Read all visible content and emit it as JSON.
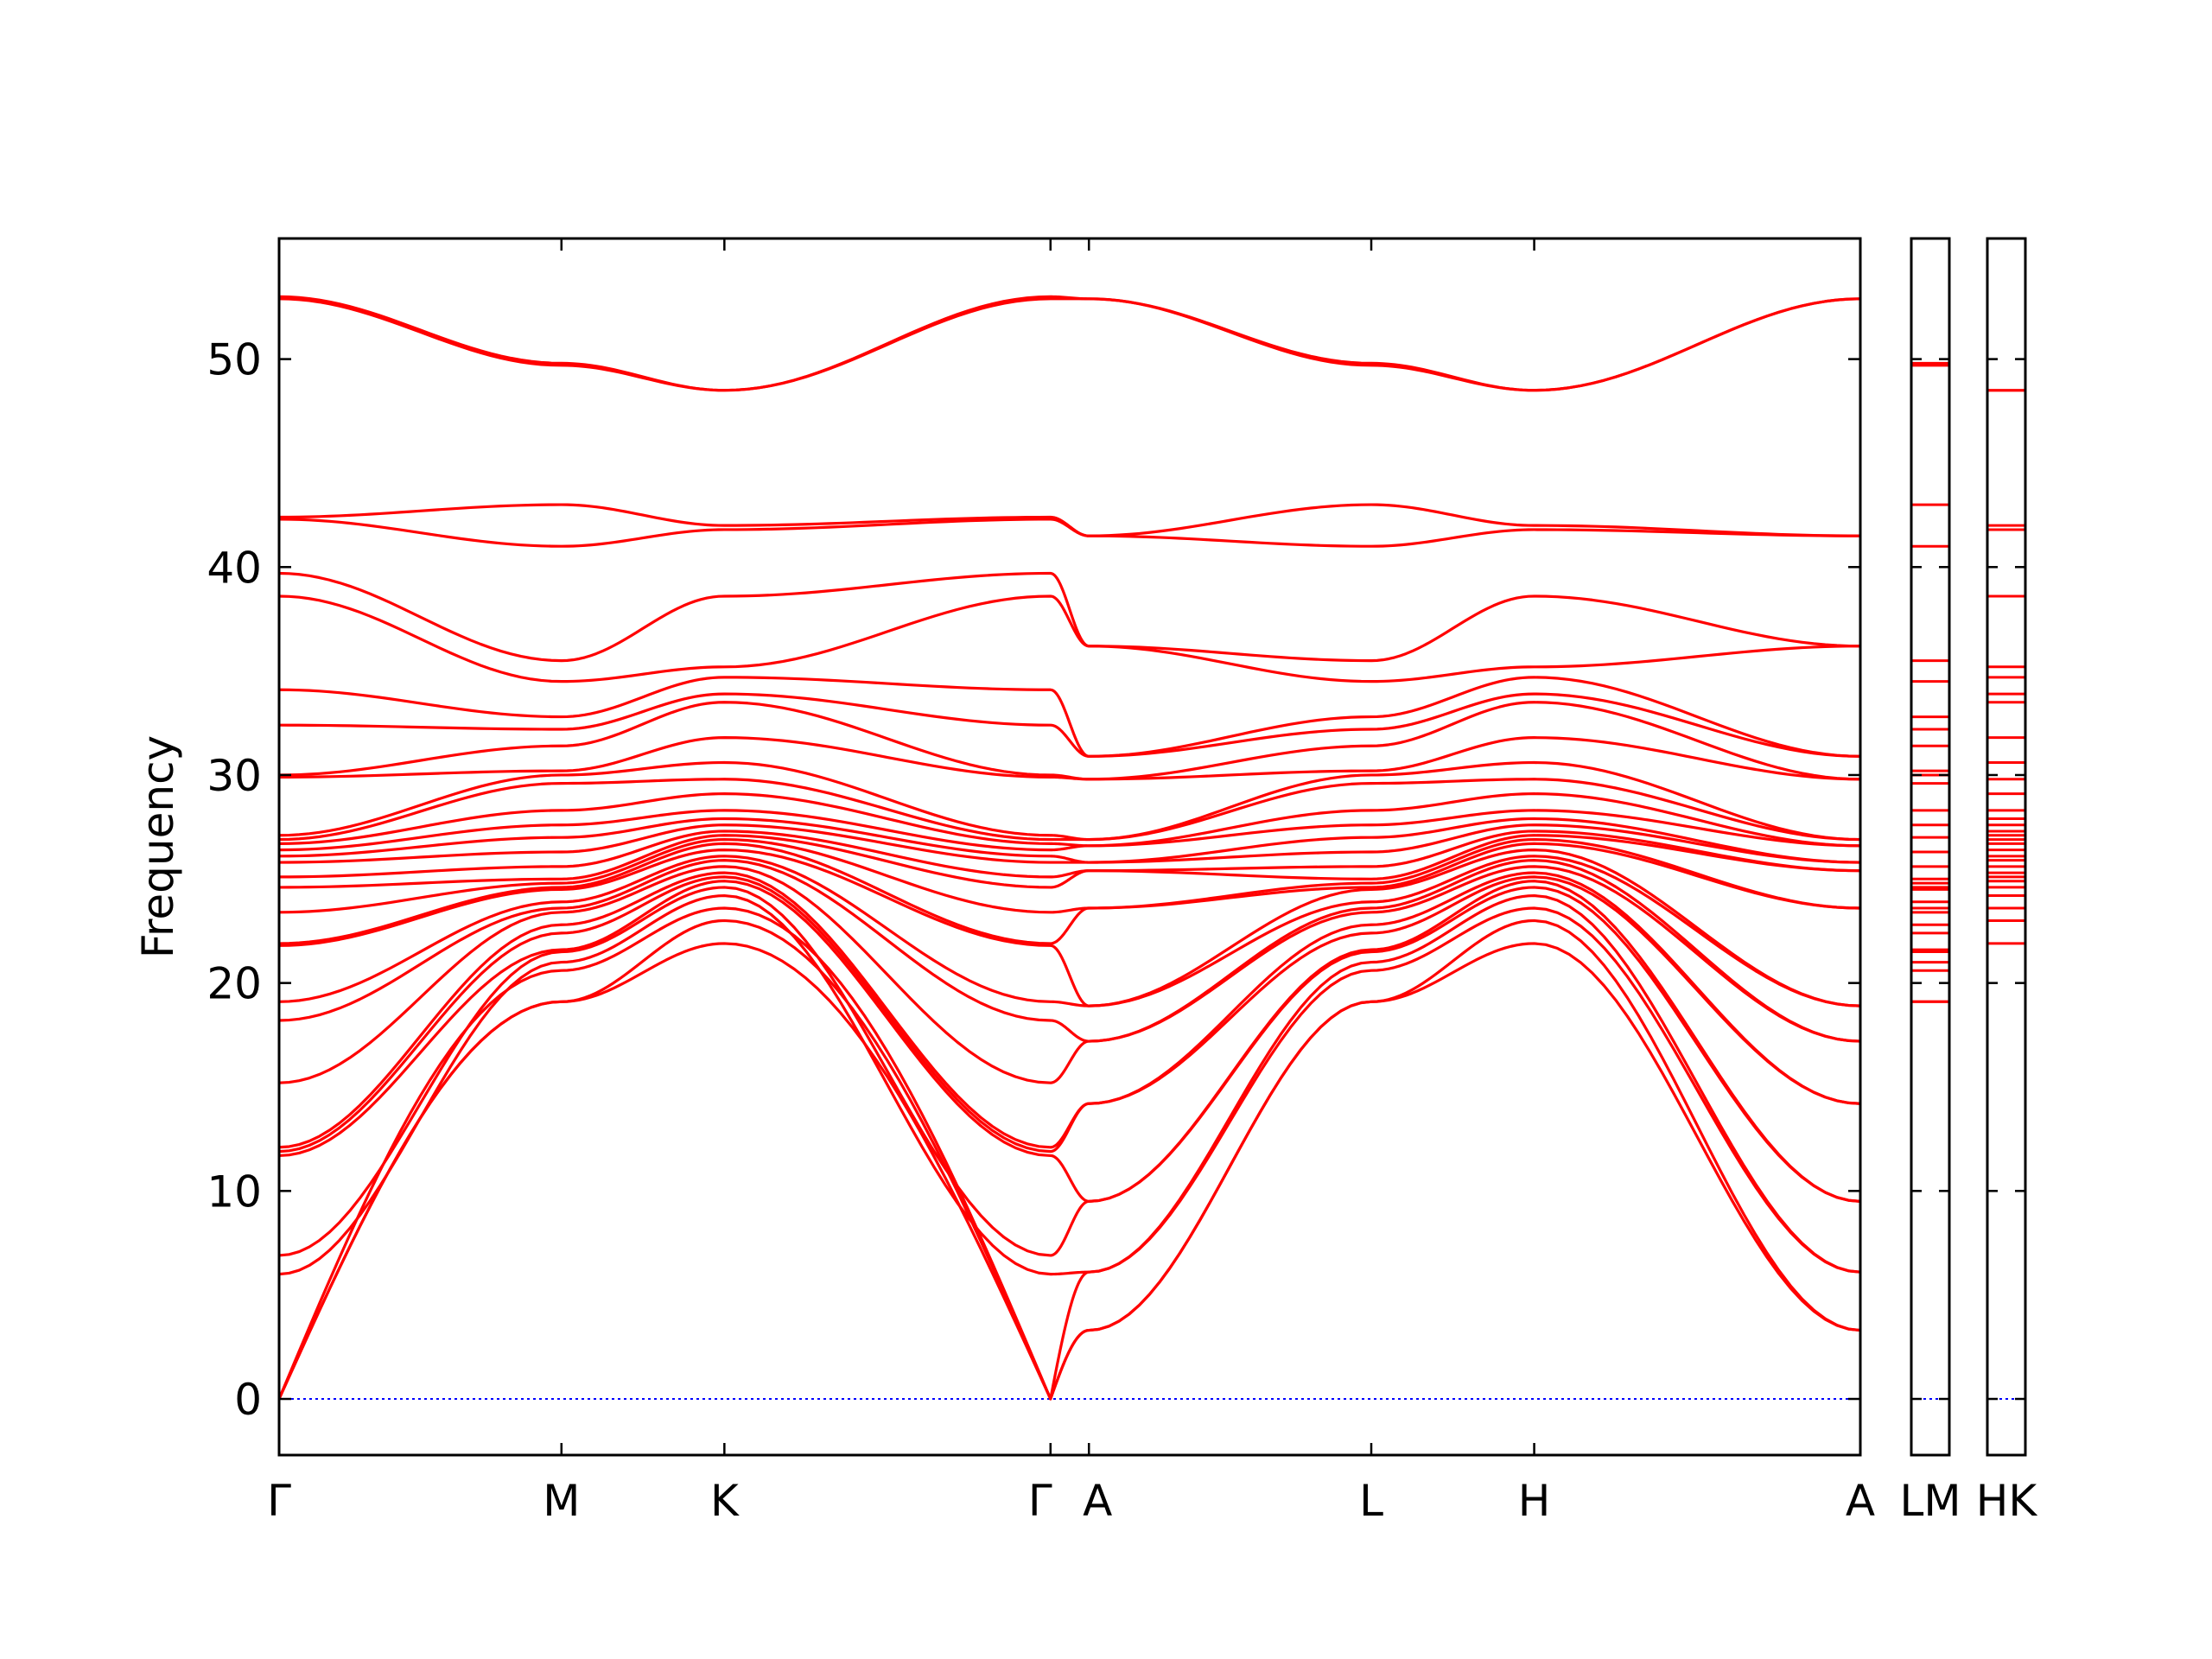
{
  "chart_data": {
    "type": "line",
    "title": "",
    "xlabel": "",
    "ylabel": "Frequency",
    "ylim": [
      -2.7,
      55.8
    ],
    "y_ticks": [
      0,
      10,
      20,
      30,
      40,
      50
    ],
    "grid": false,
    "legend": "none",
    "colors": {
      "bands": "#ff0000",
      "zero_line": "#0000ff",
      "axes": "#000000"
    },
    "kpath": {
      "labels": [
        "Γ",
        "M",
        "K",
        "Γ",
        "A",
        "L",
        "H",
        "A"
      ],
      "segment_lengths": [
        1.0,
        0.577,
        1.155,
        0.136,
        1.0,
        0.577,
        1.155
      ],
      "tick_labels": [
        "Γ",
        "M",
        "K",
        "Γ",
        "A",
        "L",
        "H",
        "A"
      ]
    },
    "side_panels": [
      {
        "labels": [
          "L",
          "M"
        ],
        "tick_label": "LM"
      },
      {
        "labels": [
          "H",
          "K"
        ],
        "tick_label": "HK"
      }
    ],
    "series": [
      {
        "values": [
          0,
          19.1,
          21.9,
          0,
          3.3,
          19.1,
          21.9,
          3.3
        ]
      },
      {
        "values": [
          0,
          19.1,
          23.0,
          0,
          3.3,
          19.1,
          23.0,
          3.3
        ]
      },
      {
        "values": [
          0,
          20.6,
          23.6,
          0,
          6.1,
          20.6,
          23.6,
          6.1
        ]
      },
      {
        "values": [
          6.0,
          21.0,
          24.2,
          6.0,
          6.1,
          21.0,
          24.2,
          6.1
        ]
      },
      {
        "values": [
          6.9,
          21.5,
          24.6,
          6.9,
          9.5,
          21.5,
          24.6,
          9.5
        ]
      },
      {
        "values": [
          11.7,
          21.6,
          24.9,
          11.7,
          9.5,
          21.6,
          24.9,
          9.5
        ]
      },
      {
        "values": [
          11.9,
          22.4,
          25.1,
          11.9,
          14.2,
          22.4,
          25.1,
          14.2
        ]
      },
      {
        "values": [
          12.1,
          22.8,
          25.3,
          12.1,
          14.2,
          22.8,
          25.3,
          14.2
        ]
      },
      {
        "values": [
          15.2,
          23.4,
          25.6,
          15.2,
          17.2,
          23.4,
          25.6,
          17.2
        ]
      },
      {
        "values": [
          18.2,
          23.6,
          25.9,
          18.2,
          17.2,
          23.6,
          25.9,
          17.2
        ]
      },
      {
        "values": [
          19.1,
          23.9,
          26.1,
          19.1,
          18.9,
          23.9,
          26.1,
          18.9
        ]
      },
      {
        "values": [
          21.8,
          24.5,
          26.4,
          21.8,
          18.9,
          24.5,
          26.4,
          18.9
        ]
      },
      {
        "values": [
          21.9,
          24.6,
          26.7,
          21.9,
          23.6,
          24.6,
          26.7,
          23.6
        ]
      },
      {
        "values": [
          23.4,
          24.8,
          26.9,
          23.4,
          23.6,
          24.8,
          26.9,
          23.6
        ]
      },
      {
        "values": [
          24.6,
          25.0,
          27.1,
          24.6,
          25.4,
          25.0,
          27.1,
          25.4
        ]
      },
      {
        "values": [
          25.1,
          25.6,
          27.3,
          25.1,
          25.4,
          25.6,
          27.3,
          25.4
        ]
      },
      {
        "values": [
          25.8,
          26.3,
          27.6,
          25.8,
          25.8,
          26.3,
          27.6,
          25.8
        ]
      },
      {
        "values": [
          26.1,
          27.0,
          27.9,
          26.1,
          25.8,
          27.0,
          27.9,
          25.8
        ]
      },
      {
        "values": [
          26.4,
          27.6,
          28.3,
          26.4,
          26.6,
          27.6,
          28.3,
          26.6
        ]
      },
      {
        "values": [
          26.7,
          28.3,
          29.1,
          26.7,
          26.6,
          28.3,
          29.1,
          26.6
        ]
      },
      {
        "values": [
          26.9,
          29.6,
          29.8,
          26.9,
          26.9,
          29.6,
          29.8,
          26.9
        ]
      },
      {
        "values": [
          27.1,
          30.0,
          30.6,
          27.1,
          26.9,
          30.0,
          30.6,
          26.9
        ]
      },
      {
        "values": [
          29.9,
          30.2,
          31.8,
          29.9,
          29.8,
          30.2,
          31.8,
          29.8
        ]
      },
      {
        "values": [
          30.0,
          31.4,
          33.5,
          30.0,
          29.8,
          31.4,
          33.5,
          29.8
        ]
      },
      {
        "values": [
          32.4,
          32.2,
          33.9,
          32.4,
          30.9,
          32.2,
          33.9,
          30.9
        ]
      },
      {
        "values": [
          34.1,
          32.8,
          34.7,
          34.1,
          30.9,
          32.8,
          34.7,
          30.9
        ]
      },
      {
        "values": [
          38.6,
          34.5,
          35.2,
          38.6,
          36.2,
          34.5,
          35.2,
          36.2
        ]
      },
      {
        "values": [
          39.7,
          35.5,
          38.6,
          39.7,
          36.2,
          35.5,
          38.6,
          36.2
        ]
      },
      {
        "values": [
          42.3,
          41.0,
          41.8,
          42.3,
          41.5,
          41.0,
          41.8,
          41.5
        ]
      },
      {
        "values": [
          42.4,
          43.0,
          42.0,
          42.4,
          41.5,
          43.0,
          42.0,
          41.5
        ]
      },
      {
        "values": [
          52.9,
          49.7,
          48.5,
          52.9,
          52.9,
          49.7,
          48.5,
          52.9
        ]
      },
      {
        "values": [
          53.0,
          49.8,
          48.5,
          53.0,
          52.9,
          49.8,
          48.5,
          52.9
        ]
      }
    ]
  }
}
